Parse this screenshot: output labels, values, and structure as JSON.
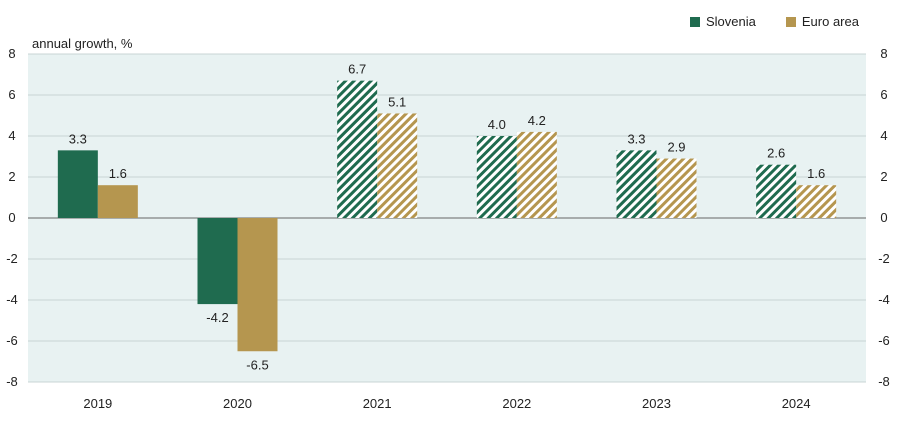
{
  "chart_data": {
    "type": "bar",
    "ylabel": "annual growth, %",
    "categories": [
      "2019",
      "2020",
      "2021",
      "2022",
      "2023",
      "2024"
    ],
    "ylim": [
      -8,
      8
    ],
    "yticks": [
      8,
      6,
      4,
      2,
      0,
      -2,
      -4,
      -6,
      -8
    ],
    "grid": true,
    "legend_position": "top-right",
    "forecast_from_index": 2,
    "series": [
      {
        "name": "Slovenia",
        "color": "#1f6b4f",
        "values": [
          3.3,
          -4.2,
          6.7,
          4.0,
          3.3,
          2.6
        ]
      },
      {
        "name": "Euro area",
        "color": "#b5964f",
        "values": [
          1.6,
          -6.5,
          5.1,
          4.2,
          2.9,
          1.6
        ]
      }
    ],
    "value_labels": [
      [
        "3.3",
        "-4.2",
        "6.7",
        "4.0",
        "3.3",
        "2.6"
      ],
      [
        "1.6",
        "-6.5",
        "5.1",
        "4.2",
        "2.9",
        "1.6"
      ]
    ]
  }
}
